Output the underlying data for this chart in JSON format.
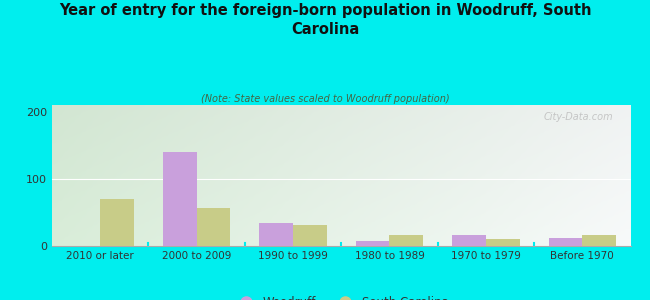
{
  "title": "Year of entry for the foreign-born population in Woodruff, South\nCarolina",
  "subtitle": "(Note: State values scaled to Woodruff population)",
  "categories": [
    "2010 or later",
    "2000 to 2009",
    "1990 to 1999",
    "1980 to 1989",
    "1970 to 1979",
    "Before 1970"
  ],
  "woodruff": [
    0,
    140,
    35,
    7,
    17,
    12
  ],
  "south_carolina": [
    70,
    57,
    32,
    17,
    11,
    17
  ],
  "woodruff_color": "#c9a0dc",
  "sc_color": "#c8cc88",
  "background_outer": "#00eeee",
  "plot_bg_left": "#d8eedd",
  "plot_bg_right": "#f5f8f0",
  "ylim": [
    0,
    210
  ],
  "yticks": [
    0,
    100,
    200
  ],
  "bar_width": 0.35,
  "watermark": "City-Data.com"
}
